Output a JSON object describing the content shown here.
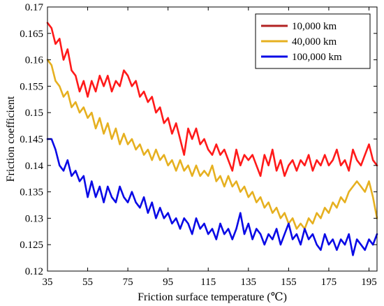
{
  "chart_data": {
    "type": "line",
    "title": "",
    "xlabel": "Friction surface temperature (℃)",
    "ylabel": "Friction coefficient",
    "xlim": [
      35,
      199
    ],
    "ylim": [
      0.12,
      0.17
    ],
    "xticks": [
      35,
      55,
      75,
      95,
      115,
      135,
      155,
      175,
      195
    ],
    "xtick_labels": [
      "35",
      "55",
      "75",
      "95",
      "115",
      "135",
      "155",
      "175",
      "195"
    ],
    "yticks": [
      0.12,
      0.125,
      0.13,
      0.135,
      0.14,
      0.145,
      0.15,
      0.155,
      0.16,
      0.165,
      0.17
    ],
    "ytick_labels": [
      "0.12",
      "0.125",
      "0.13",
      "0.135",
      "0.14",
      "0.145",
      "0.15",
      "0.155",
      "0.16",
      "0.165",
      "0.17"
    ],
    "grid": false,
    "legend_position": "top-right",
    "series": [
      {
        "name": "10,000 km",
        "color": "#ff1a1a",
        "legend_color": "#b22222",
        "x": [
          35,
          37,
          39,
          41,
          43,
          45,
          47,
          49,
          51,
          53,
          55,
          57,
          59,
          61,
          63,
          65,
          67,
          69,
          71,
          73,
          75,
          77,
          79,
          81,
          83,
          85,
          87,
          89,
          91,
          93,
          95,
          97,
          99,
          101,
          103,
          105,
          107,
          109,
          111,
          113,
          115,
          117,
          119,
          121,
          123,
          125,
          127,
          129,
          131,
          133,
          135,
          137,
          139,
          141,
          143,
          145,
          147,
          149,
          151,
          153,
          155,
          157,
          159,
          161,
          163,
          165,
          167,
          169,
          171,
          173,
          175,
          177,
          179,
          181,
          183,
          185,
          187,
          189,
          191,
          193,
          195,
          197,
          199
        ],
        "y": [
          0.167,
          0.166,
          0.163,
          0.164,
          0.16,
          0.162,
          0.158,
          0.157,
          0.154,
          0.156,
          0.153,
          0.156,
          0.154,
          0.157,
          0.155,
          0.157,
          0.154,
          0.156,
          0.155,
          0.158,
          0.157,
          0.155,
          0.156,
          0.153,
          0.154,
          0.152,
          0.153,
          0.15,
          0.151,
          0.148,
          0.149,
          0.146,
          0.148,
          0.145,
          0.142,
          0.147,
          0.145,
          0.147,
          0.144,
          0.145,
          0.143,
          0.142,
          0.144,
          0.142,
          0.143,
          0.141,
          0.139,
          0.143,
          0.14,
          0.142,
          0.141,
          0.142,
          0.14,
          0.138,
          0.142,
          0.14,
          0.143,
          0.139,
          0.141,
          0.138,
          0.14,
          0.141,
          0.139,
          0.141,
          0.14,
          0.142,
          0.139,
          0.141,
          0.14,
          0.142,
          0.14,
          0.141,
          0.143,
          0.14,
          0.141,
          0.139,
          0.143,
          0.141,
          0.14,
          0.142,
          0.144,
          0.141,
          0.14
        ]
      },
      {
        "name": "40,000 km",
        "color": "#e6b020",
        "legend_color": "#e6b020",
        "x": [
          35,
          37,
          39,
          41,
          43,
          45,
          47,
          49,
          51,
          53,
          55,
          57,
          59,
          61,
          63,
          65,
          67,
          69,
          71,
          73,
          75,
          77,
          79,
          81,
          83,
          85,
          87,
          89,
          91,
          93,
          95,
          97,
          99,
          101,
          103,
          105,
          107,
          109,
          111,
          113,
          115,
          117,
          119,
          121,
          123,
          125,
          127,
          129,
          131,
          133,
          135,
          137,
          139,
          141,
          143,
          145,
          147,
          149,
          151,
          153,
          155,
          157,
          159,
          161,
          163,
          165,
          167,
          169,
          171,
          173,
          175,
          177,
          179,
          181,
          183,
          185,
          187,
          189,
          191,
          193,
          195,
          197,
          199
        ],
        "y": [
          0.16,
          0.159,
          0.156,
          0.155,
          0.153,
          0.154,
          0.151,
          0.152,
          0.15,
          0.151,
          0.149,
          0.15,
          0.147,
          0.149,
          0.146,
          0.148,
          0.145,
          0.147,
          0.144,
          0.146,
          0.144,
          0.145,
          0.143,
          0.144,
          0.142,
          0.143,
          0.141,
          0.143,
          0.141,
          0.142,
          0.14,
          0.141,
          0.139,
          0.141,
          0.139,
          0.14,
          0.138,
          0.14,
          0.138,
          0.139,
          0.138,
          0.14,
          0.137,
          0.138,
          0.136,
          0.138,
          0.136,
          0.137,
          0.135,
          0.136,
          0.134,
          0.135,
          0.133,
          0.134,
          0.132,
          0.133,
          0.131,
          0.132,
          0.13,
          0.131,
          0.129,
          0.13,
          0.128,
          0.129,
          0.128,
          0.13,
          0.129,
          0.131,
          0.13,
          0.132,
          0.131,
          0.133,
          0.132,
          0.134,
          0.133,
          0.135,
          0.136,
          0.137,
          0.136,
          0.135,
          0.137,
          0.134,
          0.13
        ]
      },
      {
        "name": "100,000 km",
        "color": "#0a0ae6",
        "legend_color": "#0a0ae6",
        "x": [
          35,
          37,
          39,
          41,
          43,
          45,
          47,
          49,
          51,
          53,
          55,
          57,
          59,
          61,
          63,
          65,
          67,
          69,
          71,
          73,
          75,
          77,
          79,
          81,
          83,
          85,
          87,
          89,
          91,
          93,
          95,
          97,
          99,
          101,
          103,
          105,
          107,
          109,
          111,
          113,
          115,
          117,
          119,
          121,
          123,
          125,
          127,
          129,
          131,
          133,
          135,
          137,
          139,
          141,
          143,
          145,
          147,
          149,
          151,
          153,
          155,
          157,
          159,
          161,
          163,
          165,
          167,
          169,
          171,
          173,
          175,
          177,
          179,
          181,
          183,
          185,
          187,
          189,
          191,
          193,
          195,
          197,
          199
        ],
        "y": [
          0.145,
          0.145,
          0.143,
          0.14,
          0.139,
          0.141,
          0.138,
          0.139,
          0.137,
          0.138,
          0.134,
          0.137,
          0.134,
          0.136,
          0.133,
          0.136,
          0.134,
          0.133,
          0.136,
          0.134,
          0.133,
          0.135,
          0.133,
          0.132,
          0.134,
          0.131,
          0.133,
          0.13,
          0.132,
          0.13,
          0.131,
          0.129,
          0.13,
          0.128,
          0.13,
          0.129,
          0.127,
          0.13,
          0.128,
          0.129,
          0.127,
          0.128,
          0.126,
          0.129,
          0.127,
          0.128,
          0.126,
          0.128,
          0.131,
          0.127,
          0.129,
          0.126,
          0.128,
          0.127,
          0.125,
          0.127,
          0.126,
          0.128,
          0.125,
          0.127,
          0.129,
          0.126,
          0.127,
          0.125,
          0.128,
          0.126,
          0.127,
          0.125,
          0.124,
          0.127,
          0.125,
          0.126,
          0.124,
          0.126,
          0.125,
          0.127,
          0.123,
          0.126,
          0.125,
          0.124,
          0.126,
          0.125,
          0.127
        ]
      }
    ]
  }
}
